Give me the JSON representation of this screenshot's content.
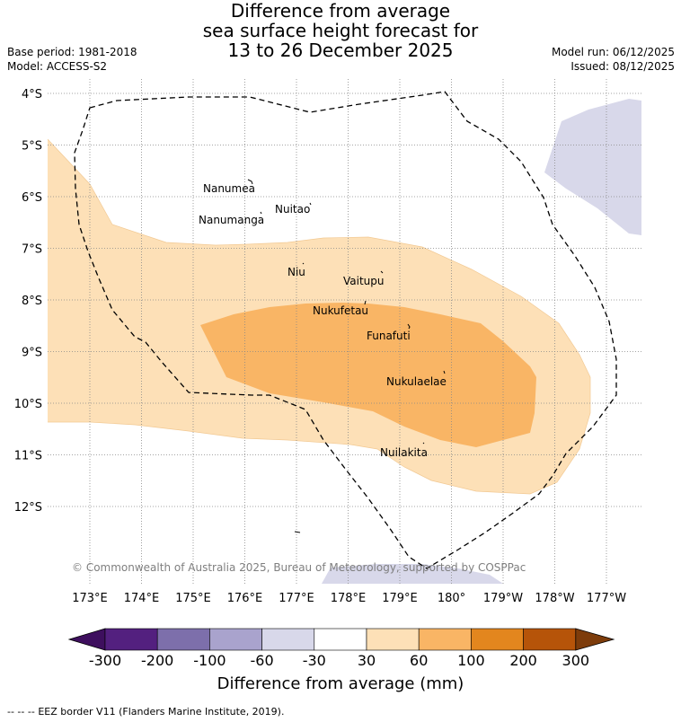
{
  "title": {
    "line1": "Difference from average",
    "line2": "sea surface height forecast for",
    "line3": "13 to 26 December 2025"
  },
  "meta": {
    "base_period": "Base period: 1981-2018",
    "model": "Model: ACCESS-S2",
    "model_run": "Model run: 06/12/2025",
    "issued": "Issued: 08/12/2025"
  },
  "map": {
    "lat_labels": [
      "4°S",
      "5°S",
      "6°S",
      "7°S",
      "8°S",
      "9°S",
      "10°S",
      "11°S",
      "12°S"
    ],
    "lon_labels": [
      "173°E",
      "174°E",
      "175°E",
      "176°E",
      "177°E",
      "178°E",
      "179°E",
      "180°",
      "179°W",
      "178°W",
      "177°W"
    ],
    "islands": [
      "Nanumea",
      "Nuitao",
      "Nanumanga",
      "Niu",
      "Vaitupu",
      "Nukufetau",
      "Funafuti",
      "Nukulaelae",
      "Nuilakita"
    ],
    "copyright": "© Commonwealth of Australia 2025, Bureau of Meteorology, supported by COSPPac",
    "colors": {
      "band_30_60": "#fde0b7",
      "band_60_100": "#f9b565",
      "band_neg60_neg30": "#d8d8ea"
    }
  },
  "colorbar": {
    "ticks": [
      "-300",
      "-200",
      "-100",
      "-60",
      "-30",
      "30",
      "60",
      "100",
      "200",
      "300"
    ],
    "label": "Difference from average (mm)",
    "colors": [
      "#3e0f5e",
      "#53207f",
      "#7d6fab",
      "#a9a3cd",
      "#d8d8ea",
      "#ffffff",
      "#fde0b7",
      "#f9b565",
      "#e3861e",
      "#b65409",
      "#7d3c0b"
    ]
  },
  "legend": {
    "eez_symbol": "--  --  --",
    "eez_text": "EEZ border V11 (Flanders Marine Institute, 2019)."
  }
}
